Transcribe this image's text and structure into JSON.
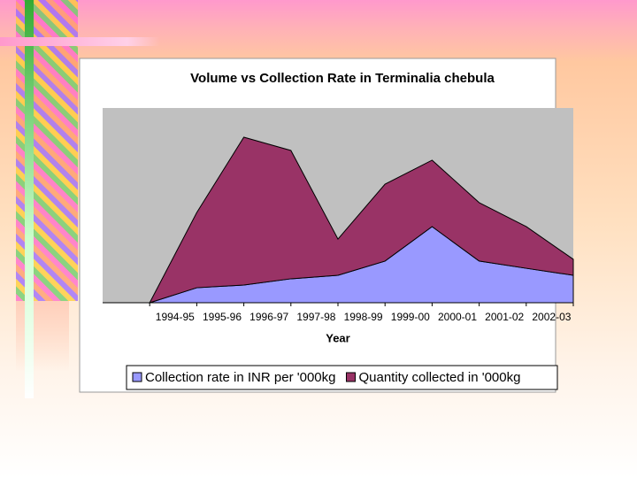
{
  "chart_data": {
    "type": "stacked_area",
    "title": "Volume vs Collection Rate in Terminalia chebula",
    "x_label": "Year",
    "categories": [
      null,
      "1994-95",
      "1995-96",
      "1996-97",
      "1997-98",
      "1998-99",
      "1999-00",
      "2000-01",
      "2001-02",
      "2002-03"
    ],
    "series": [
      {
        "name": "Collection rate in INR per '000kg",
        "color": "#9999ff",
        "values": [
          0,
          7.7,
          9.1,
          12.3,
          14.1,
          21.4,
          39.1,
          21.4,
          17.7,
          14.1
        ]
      },
      {
        "name": "Quantity collected in '000kg",
        "color": "#993366",
        "values": [
          0,
          38.6,
          75.9,
          65.9,
          18.6,
          39.5,
          34.1,
          30,
          21.4,
          8.2
        ]
      }
    ],
    "ylim": [
      0,
      100
    ],
    "legend": "bottom"
  }
}
